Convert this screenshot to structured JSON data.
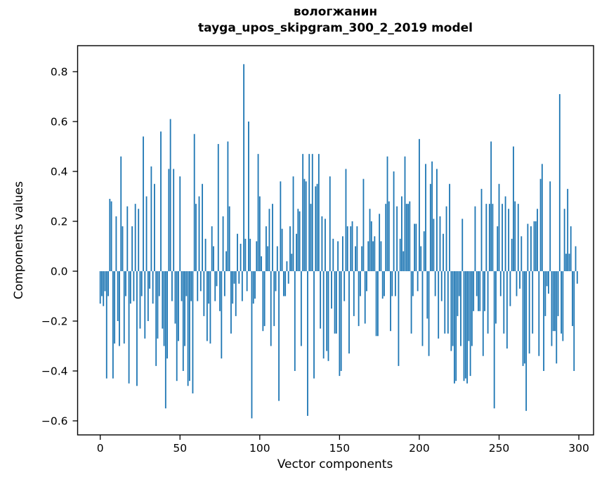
{
  "figure": {
    "title_line1": "вологжанин",
    "title_line2": "tayga_upos_skipgram_300_2_2019 model",
    "xlabel": "Vector components",
    "ylabel": "Components values",
    "background": "#ffffff",
    "frame_color": "#000000"
  },
  "chart_data": {
    "type": "bar",
    "title": "вологжанин — tayga_upos_skipgram_300_2_2019 model",
    "xlabel": "Vector components",
    "ylabel": "Components values",
    "bar_color": "#1f77b4",
    "grid": false,
    "legend": false,
    "x_start": 0,
    "n_components": 300,
    "xlim": [
      -14.4,
      309.3
    ],
    "ylim": [
      -0.66,
      0.9
    ],
    "x_tick_values": [
      0,
      50,
      100,
      150,
      200,
      250,
      300
    ],
    "x_tick_labels": [
      "0",
      "50",
      "100",
      "150",
      "200",
      "250",
      "300"
    ],
    "y_tick_values": [
      0.8,
      0.6,
      0.4,
      0.2,
      0.0,
      -0.2,
      -0.4,
      -0.6
    ],
    "y_tick_labels": [
      "0.8",
      "0.6",
      "0.4",
      "0.2",
      "0.0",
      "−0.2",
      "−0.4",
      "−0.6"
    ],
    "values": [
      -0.13,
      -0.1,
      -0.14,
      -0.08,
      -0.43,
      -0.1,
      0.29,
      0.28,
      -0.43,
      -0.29,
      0.22,
      -0.2,
      -0.3,
      0.46,
      0.18,
      -0.29,
      -0.1,
      0.26,
      -0.45,
      -0.13,
      0.18,
      -0.12,
      0.27,
      -0.46,
      0.25,
      -0.23,
      -0.1,
      0.54,
      -0.27,
      0.3,
      -0.2,
      -0.07,
      0.42,
      -0.13,
      0.35,
      -0.38,
      -0.27,
      -0.1,
      0.56,
      -0.23,
      -0.3,
      -0.55,
      -0.35,
      0.41,
      0.61,
      -0.12,
      0.41,
      -0.21,
      -0.44,
      -0.28,
      0.38,
      -0.12,
      -0.4,
      -0.3,
      -0.1,
      -0.46,
      -0.44,
      -0.12,
      -0.49,
      0.55,
      0.27,
      -0.12,
      0.3,
      -0.08,
      0.35,
      -0.18,
      0.13,
      -0.28,
      -0.13,
      -0.29,
      0.18,
      0.1,
      -0.12,
      -0.06,
      0.51,
      -0.16,
      -0.35,
      0.22,
      -0.1,
      0.08,
      0.52,
      0.26,
      -0.25,
      -0.13,
      -0.05,
      -0.18,
      0.15,
      -0.05,
      0.11,
      -0.12,
      0.83,
      0.13,
      -0.08,
      0.6,
      0.13,
      -0.59,
      -0.13,
      -0.11,
      0.12,
      0.47,
      0.3,
      0.06,
      -0.24,
      -0.22,
      0.18,
      0.1,
      0.25,
      -0.3,
      0.27,
      -0.22,
      -0.08,
      0.1,
      -0.52,
      0.36,
      0.17,
      -0.1,
      -0.1,
      0.04,
      -0.05,
      0.18,
      0.07,
      0.38,
      -0.4,
      0.15,
      0.25,
      0.24,
      -0.3,
      0.47,
      0.37,
      0.36,
      -0.58,
      0.47,
      0.27,
      0.47,
      -0.43,
      0.34,
      0.35,
      0.47,
      -0.23,
      0.22,
      -0.35,
      0.21,
      -0.32,
      -0.36,
      0.38,
      -0.15,
      0.13,
      -0.25,
      -0.25,
      0.12,
      -0.42,
      -0.4,
      0.14,
      -0.12,
      0.41,
      0.18,
      -0.33,
      0.18,
      0.2,
      -0.18,
      0.1,
      0.18,
      -0.22,
      -0.1,
      0.1,
      0.37,
      -0.21,
      -0.08,
      0.12,
      0.25,
      0.2,
      0.12,
      0.14,
      -0.26,
      -0.26,
      0.23,
      0.12,
      -0.11,
      -0.1,
      0.27,
      0.46,
      0.28,
      -0.24,
      -0.1,
      0.4,
      -0.1,
      0.26,
      -0.38,
      0.13,
      0.3,
      0.08,
      0.46,
      0.27,
      0.27,
      0.28,
      -0.25,
      -0.1,
      0.19,
      0.19,
      -0.08,
      0.53,
      0.1,
      -0.3,
      0.16,
      0.43,
      -0.19,
      -0.34,
      0.35,
      0.44,
      0.21,
      -0.1,
      0.41,
      -0.27,
      0.22,
      -0.12,
      0.15,
      -0.25,
      0.26,
      -0.25,
      0.35,
      -0.32,
      -0.3,
      -0.45,
      -0.44,
      -0.18,
      -0.1,
      -0.3,
      0.21,
      -0.44,
      -0.43,
      -0.45,
      -0.28,
      -0.42,
      -0.3,
      -0.16,
      0.26,
      -0.1,
      -0.16,
      -0.16,
      0.33,
      -0.34,
      -0.16,
      0.27,
      -0.25,
      0.27,
      0.52,
      0.27,
      -0.55,
      -0.21,
      0.18,
      0.35,
      -0.1,
      0.27,
      -0.25,
      0.3,
      -0.31,
      0.25,
      -0.14,
      0.13,
      0.5,
      0.28,
      -0.1,
      0.27,
      -0.07,
      0.14,
      -0.38,
      -0.37,
      -0.56,
      0.19,
      -0.33,
      0.18,
      -0.25,
      0.2,
      0.2,
      0.25,
      -0.34,
      0.37,
      0.43,
      -0.4,
      -0.18,
      -0.06,
      -0.09,
      0.36,
      -0.3,
      -0.24,
      -0.24,
      -0.37,
      -0.18,
      0.71,
      -0.25,
      -0.28,
      0.25,
      0.07,
      0.33,
      0.07,
      0.18,
      -0.22,
      -0.4,
      0.1,
      -0.05
    ]
  }
}
